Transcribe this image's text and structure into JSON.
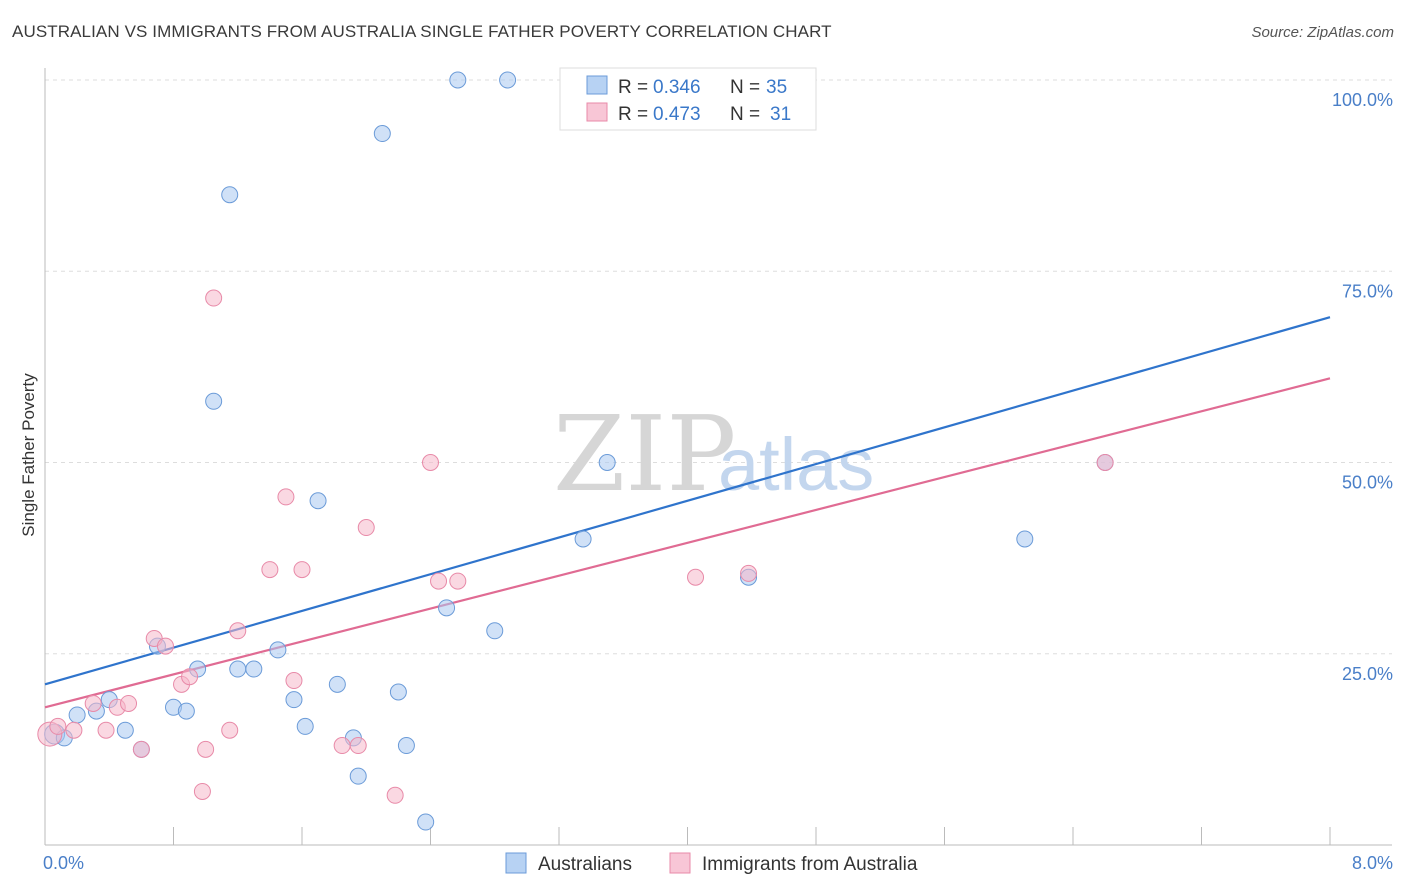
{
  "title": "AUSTRALIAN VS IMMIGRANTS FROM AUSTRALIA SINGLE FATHER POVERTY CORRELATION CHART",
  "source": "Source: ZipAtlas.com",
  "watermark": {
    "zip": "ZIP",
    "atlas": "atlas"
  },
  "chart_data": {
    "type": "scatter",
    "ylabel": "Single Father Poverty",
    "xlim": [
      0,
      8
    ],
    "ylim": [
      0,
      100
    ],
    "x_ticks": [
      0,
      0.8,
      1.6,
      2.4,
      3.2,
      4.0,
      4.8,
      5.6,
      6.4,
      7.2,
      8.0
    ],
    "x_tick_labels": {
      "left": "0.0%",
      "right": "8.0%"
    },
    "y_ticks": [
      25,
      50,
      75,
      100
    ],
    "y_tick_labels": [
      "25.0%",
      "50.0%",
      "75.0%",
      "100.0%"
    ],
    "series": [
      {
        "name": "Australians",
        "color": "#a9c8f0",
        "stroke": "#6b9bd8",
        "line_color": "#2f74cc",
        "R": "0.346",
        "N": "35",
        "trend": {
          "x0": 0,
          "y0": 21.0,
          "x1": 8,
          "y1": 69.0
        },
        "points": [
          [
            0.06,
            14.5
          ],
          [
            0.12,
            14.0
          ],
          [
            0.2,
            17.0
          ],
          [
            0.32,
            17.5
          ],
          [
            0.4,
            19.0
          ],
          [
            0.5,
            15.0
          ],
          [
            0.6,
            12.5
          ],
          [
            0.7,
            26.0
          ],
          [
            0.8,
            18.0
          ],
          [
            0.88,
            17.5
          ],
          [
            0.95,
            23.0
          ],
          [
            1.05,
            58.0
          ],
          [
            1.15,
            85.0
          ],
          [
            1.2,
            23.0
          ],
          [
            1.3,
            23.0
          ],
          [
            1.45,
            25.5
          ],
          [
            1.55,
            19.0
          ],
          [
            1.62,
            15.5
          ],
          [
            1.7,
            45.0
          ],
          [
            1.82,
            21.0
          ],
          [
            1.92,
            14.0
          ],
          [
            1.95,
            9.0
          ],
          [
            2.1,
            93.0
          ],
          [
            2.2,
            20.0
          ],
          [
            2.25,
            13.0
          ],
          [
            2.37,
            3.0
          ],
          [
            2.5,
            31.0
          ],
          [
            2.57,
            100.0
          ],
          [
            2.8,
            28.0
          ],
          [
            2.88,
            100.0
          ],
          [
            3.35,
            40.0
          ],
          [
            3.5,
            50.0
          ],
          [
            4.38,
            35.0
          ],
          [
            6.1,
            40.0
          ],
          [
            6.6,
            50.0
          ]
        ]
      },
      {
        "name": "Immigrants from Australia",
        "color": "#f5b8cb",
        "stroke": "#e88aa8",
        "line_color": "#e06b93",
        "R": "0.473",
        "N": "31",
        "trend": {
          "x0": 0,
          "y0": 18.0,
          "x1": 8,
          "y1": 61.0
        },
        "points": [
          [
            0.03,
            14.5
          ],
          [
            0.08,
            15.5
          ],
          [
            0.18,
            15.0
          ],
          [
            0.3,
            18.5
          ],
          [
            0.38,
            15.0
          ],
          [
            0.45,
            18.0
          ],
          [
            0.52,
            18.5
          ],
          [
            0.6,
            12.5
          ],
          [
            0.68,
            27.0
          ],
          [
            0.75,
            26.0
          ],
          [
            0.85,
            21.0
          ],
          [
            0.9,
            22.0
          ],
          [
            0.98,
            7.0
          ],
          [
            1.0,
            12.5
          ],
          [
            1.05,
            71.5
          ],
          [
            1.15,
            15.0
          ],
          [
            1.2,
            28.0
          ],
          [
            1.4,
            36.0
          ],
          [
            1.5,
            45.5
          ],
          [
            1.55,
            21.5
          ],
          [
            1.6,
            36.0
          ],
          [
            1.85,
            13.0
          ],
          [
            1.95,
            13.0
          ],
          [
            2.0,
            41.5
          ],
          [
            2.18,
            6.5
          ],
          [
            2.4,
            50.0
          ],
          [
            2.45,
            34.5
          ],
          [
            2.57,
            34.5
          ],
          [
            4.38,
            35.5
          ],
          [
            6.6,
            50.0
          ],
          [
            4.05,
            35.0
          ]
        ]
      }
    ]
  }
}
